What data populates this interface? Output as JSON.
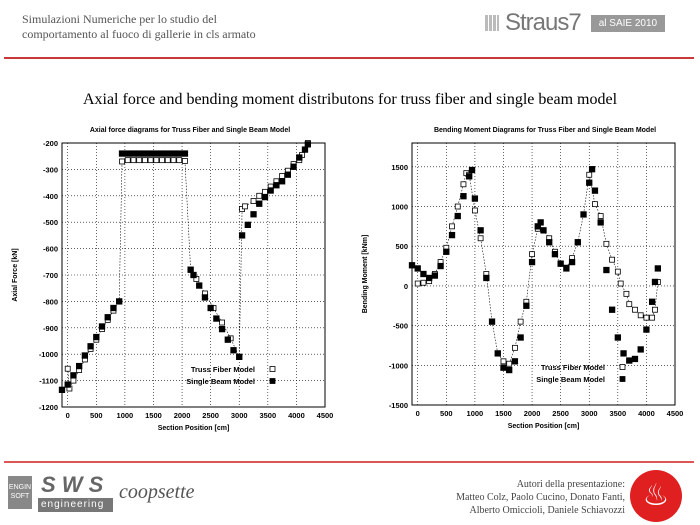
{
  "header": {
    "line1": "Simulazioni Numeriche per lo studio del",
    "line2": "comportamento al fuoco di gallerie in cls armato",
    "logo": "Straus7",
    "badge": "al SAIE 2010"
  },
  "main_title": "Axial force and bending moment distributons for truss fiber and single beam model",
  "footer": {
    "logo1": "ENGIN SOFT",
    "logo2": "S W S",
    "logo2_sub": "engineering",
    "logo3": "coopsette",
    "authors": [
      "Autori della presentazione:",
      "Matteo Colz, Paolo Cucino, Donato Fanti,",
      "Alberto Omiccioli, Daniele Schiavozzi"
    ],
    "fire_icon": "flame-icon",
    "accent": "#c83a3a"
  },
  "chart_data": [
    {
      "type": "scatter",
      "title": "Axial force diagrams for Truss Fiber and Single Beam Model",
      "xlabel": "Section Position [cm]",
      "ylabel": "Axial Force [kN]",
      "xlim": [
        -100,
        4500
      ],
      "ylim": [
        -1200,
        -200
      ],
      "grid": true,
      "legend": "bottom-right",
      "xticks": [
        0,
        500,
        1000,
        1500,
        2000,
        2500,
        3000,
        3500,
        4000,
        4500
      ],
      "yticks": [
        -200,
        -300,
        -400,
        -500,
        -600,
        -700,
        -800,
        -900,
        -1000,
        -1100,
        -1200
      ],
      "series": [
        {
          "name": "Truss Fiber Model",
          "marker": "open-square",
          "x": [
            0,
            30,
            100,
            200,
            300,
            400,
            500,
            600,
            700,
            800,
            900,
            950,
            1050,
            1150,
            1250,
            1350,
            1450,
            1550,
            1650,
            1750,
            1850,
            1950,
            2050,
            2150,
            2250,
            2400,
            2550,
            2700,
            2850,
            3000,
            3050,
            3100,
            3250,
            3350,
            3450,
            3550,
            3650,
            3750,
            3850,
            3950,
            4050,
            4100,
            4200
          ],
          "y": [
            -1055,
            -1130,
            -1100,
            -1060,
            -1020,
            -980,
            -945,
            -905,
            -870,
            -835,
            -800,
            -270,
            -265,
            -265,
            -265,
            -265,
            -265,
            -265,
            -265,
            -265,
            -265,
            -265,
            -268,
            -680,
            -715,
            -770,
            -825,
            -880,
            -940,
            -1010,
            -450,
            -440,
            -420,
            -400,
            -385,
            -365,
            -345,
            -325,
            -305,
            -280,
            -265,
            -245,
            -200
          ]
        },
        {
          "name": "Single Beam Model",
          "marker": "filled-square",
          "x": [
            -100,
            0,
            100,
            200,
            300,
            400,
            500,
            600,
            700,
            800,
            900,
            950,
            1050,
            1150,
            1250,
            1350,
            1450,
            1550,
            1650,
            1750,
            1850,
            1950,
            2050,
            2150,
            2200,
            2300,
            2400,
            2500,
            2600,
            2700,
            2800,
            2900,
            3000,
            3050,
            3150,
            3250,
            3350,
            3450,
            3550,
            3650,
            3750,
            3850,
            3950,
            4050,
            4150,
            4200
          ],
          "y": [
            -1135,
            -1115,
            -1080,
            -1045,
            -1005,
            -970,
            -935,
            -895,
            -860,
            -825,
            -800,
            -240,
            -240,
            -240,
            -240,
            -240,
            -240,
            -240,
            -240,
            -240,
            -240,
            -240,
            -240,
            -680,
            -700,
            -740,
            -785,
            -825,
            -865,
            -905,
            -945,
            -985,
            -1010,
            -550,
            -510,
            -470,
            -430,
            -405,
            -380,
            -360,
            -345,
            -320,
            -290,
            -255,
            -225,
            -205
          ]
        }
      ]
    },
    {
      "type": "scatter",
      "title": "Bending Moment Diagrams for Truss Fiber and Single Beam Model",
      "xlabel": "Section Position [cm]",
      "ylabel": "Bending Moment [kNm]",
      "xlim": [
        -100,
        4500
      ],
      "ylim": [
        -1500,
        1800
      ],
      "grid": true,
      "legend": "bottom-right",
      "xticks": [
        0,
        500,
        1000,
        1500,
        2000,
        2500,
        3000,
        3500,
        4000,
        4500
      ],
      "yticks": [
        1500,
        1000,
        500,
        0,
        -500,
        -1000,
        -1500
      ],
      "series": [
        {
          "name": "Truss Fiber Model",
          "marker": "open-square",
          "x": [
            0,
            100,
            200,
            300,
            400,
            500,
            600,
            700,
            800,
            850,
            900,
            1000,
            1100,
            1200,
            1300,
            1400,
            1500,
            1600,
            1700,
            1800,
            1900,
            2000,
            2100,
            2200,
            2300,
            2400,
            2500,
            2600,
            2700,
            2800,
            2900,
            3000,
            3100,
            3200,
            3300,
            3400,
            3500,
            3550,
            3650,
            3700,
            3800,
            3900,
            4000,
            4100,
            4150,
            4200
          ],
          "y": [
            30,
            40,
            60,
            150,
            300,
            480,
            750,
            1000,
            1280,
            1420,
            1400,
            950,
            600,
            150,
            -450,
            -850,
            -950,
            -980,
            -780,
            -450,
            -200,
            400,
            720,
            700,
            600,
            430,
            280,
            230,
            350,
            550,
            900,
            1400,
            1030,
            880,
            530,
            330,
            180,
            30,
            -100,
            -230,
            -300,
            -370,
            -400,
            -400,
            -300,
            50
          ]
        },
        {
          "name": "Single Beam Model",
          "marker": "filled-square",
          "x": [
            -100,
            0,
            100,
            200,
            300,
            400,
            500,
            600,
            700,
            800,
            900,
            950,
            1000,
            1100,
            1200,
            1300,
            1400,
            1500,
            1600,
            1700,
            1800,
            1900,
            2000,
            2100,
            2150,
            2200,
            2300,
            2400,
            2500,
            2600,
            2700,
            2800,
            2900,
            3000,
            3050,
            3100,
            3200,
            3300,
            3400,
            3500,
            3600,
            3700,
            3800,
            3900,
            4000,
            4100,
            4150,
            4200
          ],
          "y": [
            260,
            220,
            150,
            100,
            130,
            250,
            430,
            640,
            880,
            1130,
            1380,
            1460,
            1100,
            700,
            100,
            -450,
            -850,
            -1030,
            -1060,
            -950,
            -650,
            -250,
            300,
            750,
            800,
            700,
            550,
            400,
            280,
            220,
            300,
            550,
            900,
            1300,
            1470,
            1200,
            800,
            200,
            -300,
            -650,
            -850,
            -940,
            -920,
            -800,
            -550,
            -200,
            50,
            220
          ]
        }
      ]
    }
  ]
}
